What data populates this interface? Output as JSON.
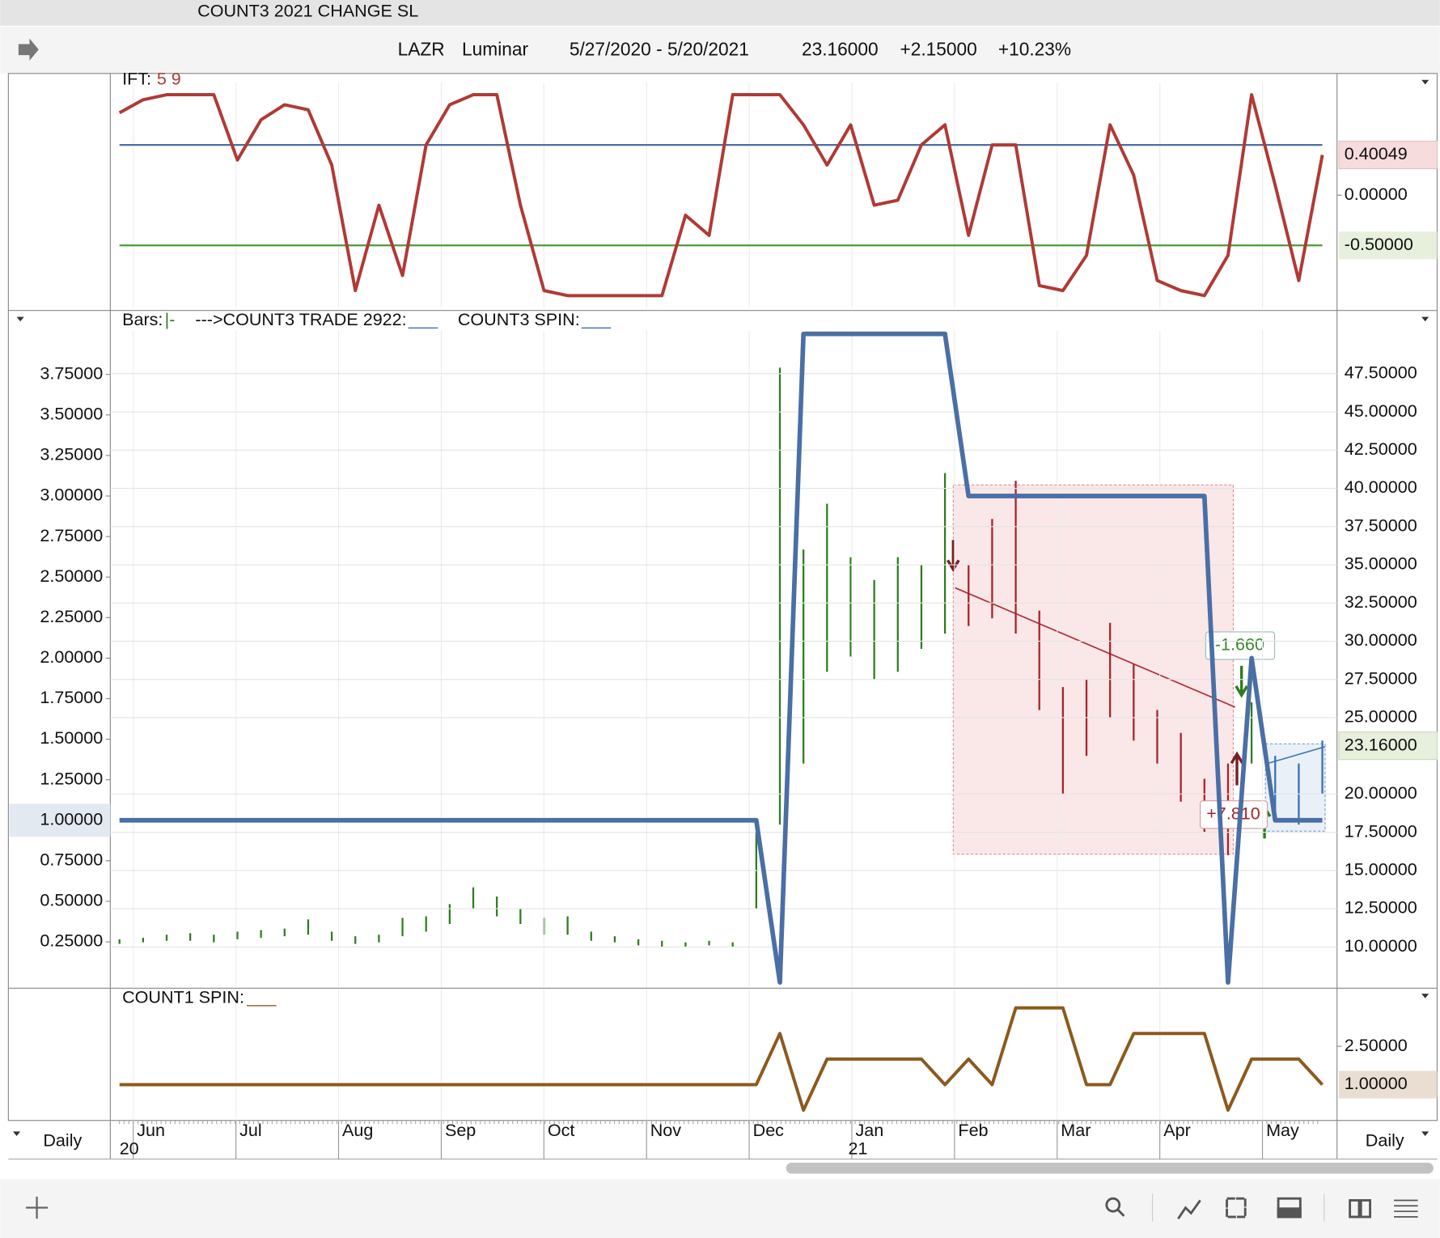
{
  "window": {
    "title": "COUNT3 2021 CHANGE SL"
  },
  "header": {
    "symbol": "LAZR",
    "name": "Luminar",
    "range": "5/27/2020 - 5/20/2021",
    "change": "+2.15000",
    "change_pct": "+10.23%"
  },
  "chart_data": [
    {
      "type": "line",
      "title": "IFT:",
      "subtitle": "5 9",
      "color": "#b03a36",
      "values": [
        0.82,
        0.95,
        1.0,
        1.0,
        1.0,
        0.35,
        0.75,
        0.9,
        0.85,
        0.3,
        -0.95,
        -0.1,
        -0.8,
        0.5,
        0.9,
        1.0,
        1.0,
        -0.1,
        -0.95,
        -1.0,
        -1.0,
        -1.0,
        -1.0,
        -1.0,
        -0.2,
        -0.4,
        1.0,
        1.0,
        1.0,
        0.7,
        0.3,
        0.7,
        -0.1,
        -0.05,
        0.5,
        0.7,
        -0.4,
        0.5,
        0.5,
        -0.9,
        -0.95,
        -0.6,
        0.7,
        0.2,
        -0.85,
        -0.95,
        -1.0,
        -0.6,
        1.0,
        0.1,
        -0.85,
        0.40049
      ],
      "ylim": [
        -1.12,
        1.12
      ],
      "yticks": [
        {
          "value": 0,
          "label": "0.00000"
        },
        {
          "value": -0.5,
          "label": "-0.50000"
        }
      ],
      "levels": [
        {
          "value": 0.5,
          "color": "#4a6fa5"
        },
        {
          "value": -0.5,
          "color": "#4c9a3c"
        }
      ]
    },
    {
      "type": "range",
      "legend": [
        {
          "label": "Bars:",
          "symbol": "|-"
        },
        {
          "label": "--->COUNT3 TRADE 2922:",
          "symbol": "___"
        },
        {
          "label": "COUNT3 SPIN:",
          "symbol": "___"
        }
      ],
      "series": [
        {
          "axis": "y2",
          "low": [
            10.2,
            10.3,
            10.4,
            10.4,
            10.3,
            10.5,
            10.6,
            10.7,
            10.8,
            10.4,
            10.2,
            10.3,
            10.7,
            11.0,
            11.5,
            12.5,
            12.0,
            11.5,
            10.8,
            10.8,
            10.4,
            10.3,
            10.1,
            10.0,
            10.0,
            10.1,
            10.0,
            12.5,
            18.0,
            22.0,
            28.0,
            29.0,
            27.5,
            28.0,
            29.5,
            30.5,
            31.0,
            31.5,
            30.5,
            25.5,
            20.0,
            22.5,
            25.0,
            23.5,
            22.0,
            19.5,
            17.5,
            16.0,
            22.0,
            18.5,
            18.0,
            20.0
          ],
          "high": [
            10.5,
            10.6,
            10.8,
            10.9,
            10.8,
            11.0,
            11.1,
            11.2,
            11.8,
            11.0,
            10.7,
            10.8,
            11.9,
            12.0,
            12.8,
            13.9,
            13.3,
            12.5,
            11.9,
            12.0,
            11.0,
            10.7,
            10.5,
            10.4,
            10.3,
            10.4,
            10.3,
            17.5,
            47.9,
            36.0,
            39.0,
            35.5,
            34.0,
            35.5,
            35.0,
            41.0,
            35.0,
            38.0,
            40.5,
            32.0,
            27.0,
            27.5,
            31.2,
            28.5,
            25.5,
            24.0,
            21.0,
            22.0,
            26.0,
            22.5,
            22.0,
            23.5
          ],
          "colors": [
            "#2e7d1e",
            "#2e7d1e",
            "#2e7d1e",
            "#2e7d1e",
            "#2e7d1e",
            "#2e7d1e",
            "#2e7d1e",
            "#2e7d1e",
            "#2e7d1e",
            "#2e7d1e",
            "#2e7d1e",
            "#2e7d1e",
            "#2e7d1e",
            "#2e7d1e",
            "#2e7d1e",
            "#2e7d1e",
            "#2e7d1e",
            "#2e7d1e",
            "#2e7d1e",
            "#2e7d1e",
            "#2e7d1e",
            "#2e7d1e",
            "#2e7d1e",
            "#2e7d1e",
            "#2e7d1e",
            "#2e7d1e",
            "#2e7d1e",
            "#2e7d1e",
            "#2e7d1e",
            "#2e7d1e",
            "#2e7d1e",
            "#2e7d1e",
            "#2e7d1e",
            "#2e7d1e",
            "#2e7d1e",
            "#2e7d1e",
            "#a8232a",
            "#a8232a",
            "#a8232a",
            "#a8232a",
            "#a8232a",
            "#a8232a",
            "#a8232a",
            "#a8232a",
            "#a8232a",
            "#a8232a",
            "#a8232a",
            "#a8232a",
            "#2e7d1e",
            "#3b6fb0",
            "#3b6fb0",
            "#3b6fb0"
          ]
        },
        {
          "color": "#4a6fa5",
          "values": [
            1,
            1,
            1,
            1,
            1,
            1,
            1,
            1,
            1,
            1,
            1,
            1,
            1,
            1,
            1,
            1,
            1,
            1,
            1,
            1,
            1,
            1,
            1,
            1,
            1,
            1,
            1,
            1,
            0,
            4,
            4,
            4,
            4,
            4,
            4,
            4,
            3,
            3,
            3,
            3,
            3,
            3,
            3,
            3,
            3,
            3,
            3,
            0,
            2,
            1,
            1,
            1
          ]
        }
      ],
      "ylim": [
        -0.03,
        4.02
      ],
      "yticks": [
        {
          "value": 0.25,
          "label": "0.25000"
        },
        {
          "value": 0.5,
          "label": "0.50000"
        },
        {
          "value": 0.75,
          "label": "0.75000"
        },
        {
          "value": 1,
          "label": "1.00000"
        },
        {
          "value": 1.25,
          "label": "1.25000"
        },
        {
          "value": 1.5,
          "label": "1.50000"
        },
        {
          "value": 1.75,
          "label": "1.75000"
        },
        {
          "value": 2,
          "label": "2.00000"
        },
        {
          "value": 2.25,
          "label": "2.25000"
        },
        {
          "value": 2.5,
          "label": "2.50000"
        },
        {
          "value": 2.75,
          "label": "2.75000"
        },
        {
          "value": 3,
          "label": "3.00000"
        },
        {
          "value": 3.25,
          "label": "3.25000"
        },
        {
          "value": 3.5,
          "label": "3.50000"
        },
        {
          "value": 3.75,
          "label": "3.75000"
        }
      ],
      "y2lim": [
        7.36,
        50.32
      ],
      "y2ticks": [
        {
          "value": 10,
          "label": "10.00000"
        },
        {
          "value": 12.5,
          "label": "12.50000"
        },
        {
          "value": 15,
          "label": "15.00000"
        },
        {
          "value": 17.5,
          "label": "17.50000"
        },
        {
          "value": 20,
          "label": "20.00000"
        },
        {
          "value": 25,
          "label": "25.00000"
        },
        {
          "value": 27.5,
          "label": "27.50000"
        },
        {
          "value": 30,
          "label": "30.00000"
        },
        {
          "value": 32.5,
          "label": "32.50000"
        },
        {
          "value": 35,
          "label": "35.00000"
        },
        {
          "value": 37.5,
          "label": "37.50000"
        },
        {
          "value": 40,
          "label": "40.00000"
        },
        {
          "value": 42.5,
          "label": "42.50000"
        },
        {
          "value": 45,
          "label": "45.00000"
        },
        {
          "value": 47.5,
          "label": "47.50000"
        }
      ],
      "last": {
        "value": 23.16,
        "label": "23.16000"
      },
      "annotations": [
        {
          "text": "-1.660"
        },
        {
          "text": "+7.810"
        }
      ]
    },
    {
      "type": "line",
      "title": "COUNT1 SPIN:",
      "symbol": "___",
      "color": "#8b5a1e",
      "values": [
        1,
        1,
        1,
        1,
        1,
        1,
        1,
        1,
        1,
        1,
        1,
        1,
        1,
        1,
        1,
        1,
        1,
        1,
        1,
        1,
        1,
        1,
        1,
        1,
        1,
        1,
        1,
        1,
        3,
        0,
        2,
        2,
        2,
        2,
        2,
        1,
        2,
        1,
        4,
        4,
        4,
        1,
        1,
        3,
        3,
        3,
        3,
        0,
        2,
        2,
        2,
        1
      ],
      "ylim": [
        -0.4,
        4.7
      ],
      "yticks": [
        {
          "value": 2.5,
          "label": "2.50000"
        },
        {
          "value": 1,
          "label": "1.00000"
        }
      ]
    }
  ],
  "time_axis": {
    "categories": [
      "Jun",
      "Jul",
      "Aug",
      "Sep",
      "Oct",
      "Nov",
      "Dec",
      "Jan",
      "Feb",
      "Mar",
      "Apr",
      "May"
    ],
    "year_labels": [
      "20",
      null,
      null,
      null,
      null,
      null,
      null,
      "21",
      null,
      null,
      null,
      null
    ],
    "period": "Daily"
  }
}
